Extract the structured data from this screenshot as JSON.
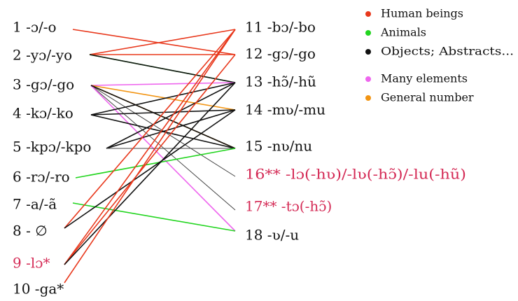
{
  "colors": {
    "human": "#e8381c",
    "animal": "#22d51f",
    "object": "#111111",
    "many": "#ee66ee",
    "general": "#f29412",
    "highlight": "#d42a55",
    "text": "#111111",
    "thin": "#444444"
  },
  "left_items": [
    {
      "id": "L1",
      "label": "1 -ɔ/-o",
      "color": "text"
    },
    {
      "id": "L2",
      "label": "2 -yɔ/-yo",
      "color": "text"
    },
    {
      "id": "L3",
      "label": "3 -gɔ/-go",
      "color": "text"
    },
    {
      "id": "L4",
      "label": "4 -kɔ/-ko",
      "color": "text"
    },
    {
      "id": "L5",
      "label": "5 -kpɔ/-kpo",
      "color": "text"
    },
    {
      "id": "L6",
      "label": "6 -rɔ/-ro",
      "color": "text"
    },
    {
      "id": "L7",
      "label": "7 -a/-ã",
      "color": "text"
    },
    {
      "id": "L8",
      "label": "8 - ∅",
      "color": "text"
    },
    {
      "id": "L9",
      "label": "9 -lɔ*",
      "color": "highlight"
    },
    {
      "id": "L10",
      "label": "10 -ga*",
      "color": "text"
    }
  ],
  "right_items": [
    {
      "id": "R11",
      "label": "11 -bɔ/-bo",
      "color": "text"
    },
    {
      "id": "R12",
      "label": "12 -gɔ/-go",
      "color": "text"
    },
    {
      "id": "R13",
      "label": "13 -hɔ̃/-hũ",
      "color": "text"
    },
    {
      "id": "R14",
      "label": "14 -mʋ/-mu",
      "color": "text"
    },
    {
      "id": "R15",
      "label": "15 -nʋ/nu",
      "color": "text"
    },
    {
      "id": "R16",
      "label": "16** -lɔ(-hʋ)/-lʋ(-hɔ̃)/-lu(-hũ)",
      "color": "highlight"
    },
    {
      "id": "R17",
      "label": "17** -tɔ(-hɔ̃)",
      "color": "highlight"
    },
    {
      "id": "R18",
      "label": "18 -ʋ/-u",
      "color": "text"
    }
  ],
  "legend": [
    {
      "label": "Human beings",
      "color": "human"
    },
    {
      "label": "Animals",
      "color": "animal"
    },
    {
      "label": "Objects; Abstracts...",
      "color": "object"
    },
    {
      "label": "Many elements",
      "color": "many"
    },
    {
      "label": "General number",
      "color": "general"
    }
  ],
  "links": [
    {
      "from": "L1",
      "to": "R12",
      "cat": "human"
    },
    {
      "from": "L2",
      "to": "R11",
      "cat": "human"
    },
    {
      "from": "L2",
      "to": "R12",
      "cat": "human"
    },
    {
      "from": "L2",
      "to": "R13",
      "cat": "animal"
    },
    {
      "from": "L2",
      "to": "R13",
      "cat": "object"
    },
    {
      "from": "L3",
      "to": "R13",
      "cat": "many"
    },
    {
      "from": "L3",
      "to": "R15",
      "cat": "general"
    },
    {
      "from": "L3",
      "to": "R14",
      "cat": "general"
    },
    {
      "from": "L3",
      "to": "R16",
      "cat": "thin"
    },
    {
      "from": "L3",
      "to": "R17",
      "cat": "thin"
    },
    {
      "from": "L3",
      "to": "R18",
      "cat": "many"
    },
    {
      "from": "L3",
      "to": "R15",
      "cat": "object"
    },
    {
      "from": "L4",
      "to": "R14",
      "cat": "object"
    },
    {
      "from": "L4",
      "to": "R13",
      "cat": "object"
    },
    {
      "from": "L4",
      "to": "R15",
      "cat": "object"
    },
    {
      "from": "L5",
      "to": "R13",
      "cat": "object"
    },
    {
      "from": "L5",
      "to": "R14",
      "cat": "object"
    },
    {
      "from": "L5",
      "to": "R15",
      "cat": "thin"
    },
    {
      "from": "L6",
      "to": "R15",
      "cat": "animal"
    },
    {
      "from": "L7",
      "to": "R18",
      "cat": "animal"
    },
    {
      "from": "L8",
      "to": "R11",
      "cat": "human"
    },
    {
      "from": "L8",
      "to": "R14",
      "cat": "object"
    },
    {
      "from": "L9",
      "to": "R11",
      "cat": "human"
    },
    {
      "from": "L9",
      "to": "R12",
      "cat": "human"
    },
    {
      "from": "L9",
      "to": "R13",
      "cat": "object"
    },
    {
      "from": "L10",
      "to": "R11",
      "cat": "human"
    }
  ]
}
